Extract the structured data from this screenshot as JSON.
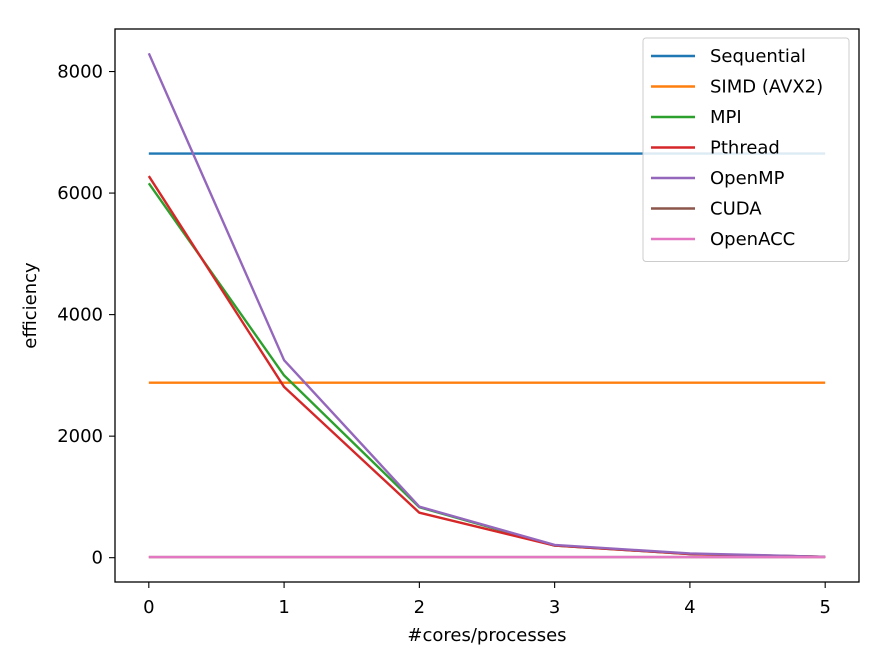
{
  "chart_data": {
    "type": "line",
    "title": "",
    "xlabel": "#cores/processes",
    "ylabel": "efficiency",
    "x": [
      0,
      1,
      2,
      3,
      4,
      5
    ],
    "xlim": [
      -0.25,
      5.25
    ],
    "ylim": [
      -400,
      8700
    ],
    "xticks": [
      0,
      1,
      2,
      3,
      4,
      5
    ],
    "yticks": [
      0,
      2000,
      4000,
      6000,
      8000
    ],
    "xtick_labels": [
      "0",
      "1",
      "2",
      "3",
      "4",
      "5"
    ],
    "ytick_labels": [
      "0",
      "2000",
      "4000",
      "6000",
      "8000"
    ],
    "grid": false,
    "legend_position": "top-right",
    "series": [
      {
        "name": "Sequential",
        "color": "#1f77b4",
        "values": [
          6650,
          6650,
          6650,
          6650,
          6650,
          6650
        ]
      },
      {
        "name": "SIMD (AVX2)",
        "color": "#ff7f0e",
        "values": [
          2880,
          2880,
          2880,
          2880,
          2880,
          2880
        ]
      },
      {
        "name": "MPI",
        "color": "#2ca02c",
        "values": [
          6160,
          3000,
          830,
          200,
          60,
          15
        ]
      },
      {
        "name": "Pthread",
        "color": "#d62728",
        "values": [
          6280,
          2810,
          740,
          200,
          60,
          15
        ]
      },
      {
        "name": "OpenMP",
        "color": "#9467bd",
        "values": [
          8300,
          3250,
          840,
          210,
          70,
          15
        ]
      },
      {
        "name": "CUDA",
        "color": "#8c564b",
        "values": [
          10,
          10,
          10,
          10,
          10,
          10
        ]
      },
      {
        "name": "OpenACC",
        "color": "#e377c2",
        "values": [
          10,
          10,
          10,
          10,
          10,
          10
        ]
      }
    ]
  }
}
